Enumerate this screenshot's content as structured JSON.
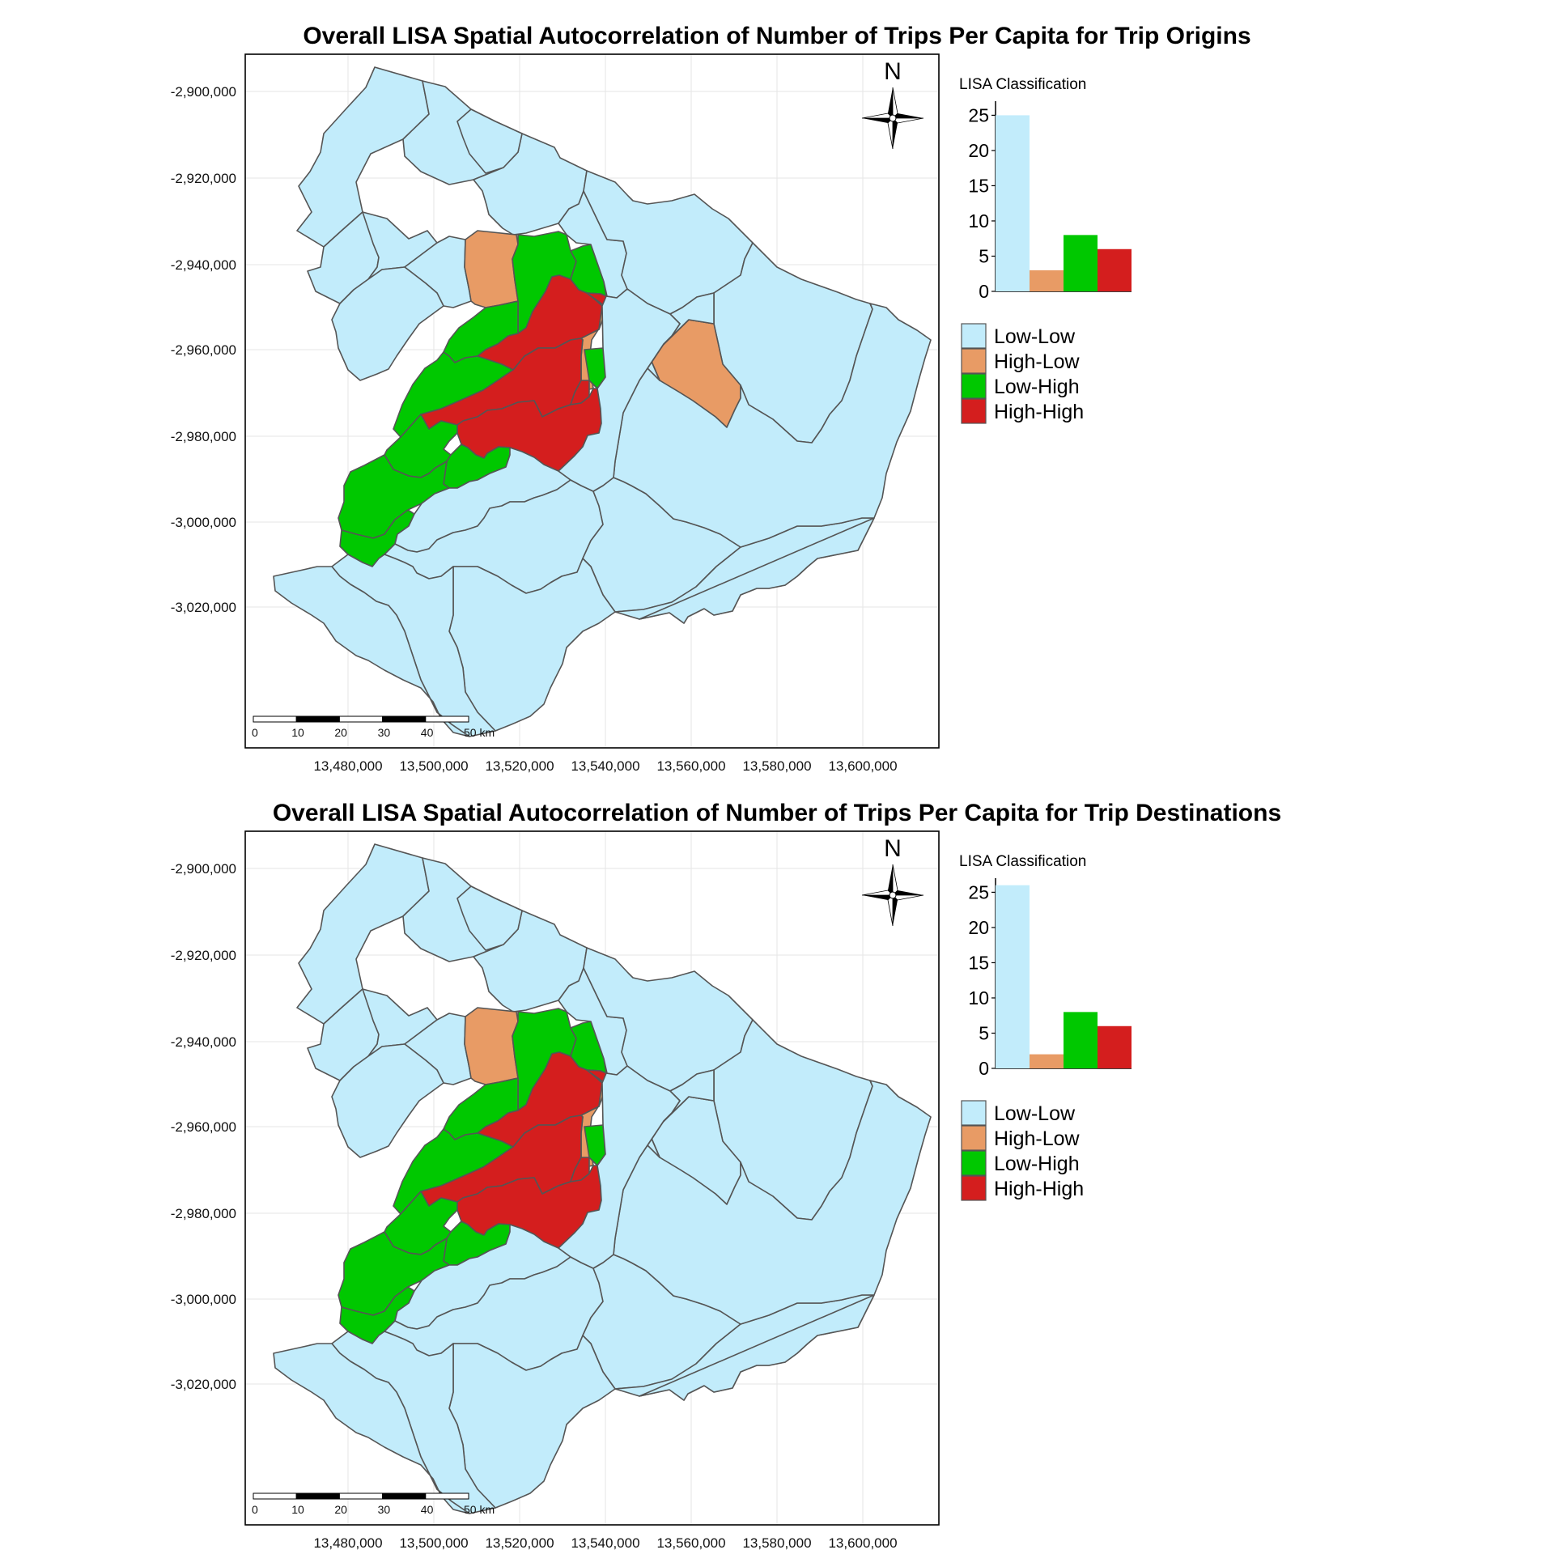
{
  "colors": {
    "low_low": "#c2ecfb",
    "high_low": "#e89b65",
    "low_high": "#00c800",
    "high_high": "#d41e1e",
    "border": "#555555",
    "grid": "#e6e6e6"
  },
  "shared": {
    "x_ticks": [
      "13,480,000",
      "13,500,000",
      "13,520,000",
      "13,540,000",
      "13,560,000",
      "13,580,000",
      "13,600,000"
    ],
    "y_ticks": [
      "-2,900,000",
      "-2,920,000",
      "-2,940,000",
      "-2,960,000",
      "-2,980,000",
      "-3,000,000",
      "-3,020,000"
    ],
    "north_label": "N",
    "scale_labels": [
      "0",
      "10",
      "20",
      "30",
      "40",
      "50 km"
    ],
    "legend_title": "LISA Classification",
    "legend_labels": [
      "Low-Low",
      "High-Low",
      "Low-High",
      "High-High"
    ],
    "hist_ticks": [
      "25",
      "20",
      "15",
      "10",
      "5",
      "0"
    ]
  },
  "maps": [
    {
      "title": "Overall LISA Spatial Autocorrelation of Number of Trips Per Capita for Trip Origins",
      "east_region_class": "high_low"
    },
    {
      "title": "Overall LISA Spatial Autocorrelation of Number of Trips Per Capita for Trip Destinations",
      "east_region_class": "low_low"
    }
  ],
  "chart_data": [
    {
      "type": "bar",
      "title": "LISA Classification",
      "categories": [
        "Low-Low",
        "High-Low",
        "Low-High",
        "High-High"
      ],
      "values": [
        25,
        3,
        8,
        6
      ],
      "ylim": [
        0,
        27
      ]
    },
    {
      "type": "bar",
      "title": "LISA Classification",
      "categories": [
        "Low-Low",
        "High-Low",
        "Low-High",
        "High-High"
      ],
      "values": [
        26,
        2,
        8,
        6
      ],
      "ylim": [
        0,
        27
      ]
    }
  ]
}
